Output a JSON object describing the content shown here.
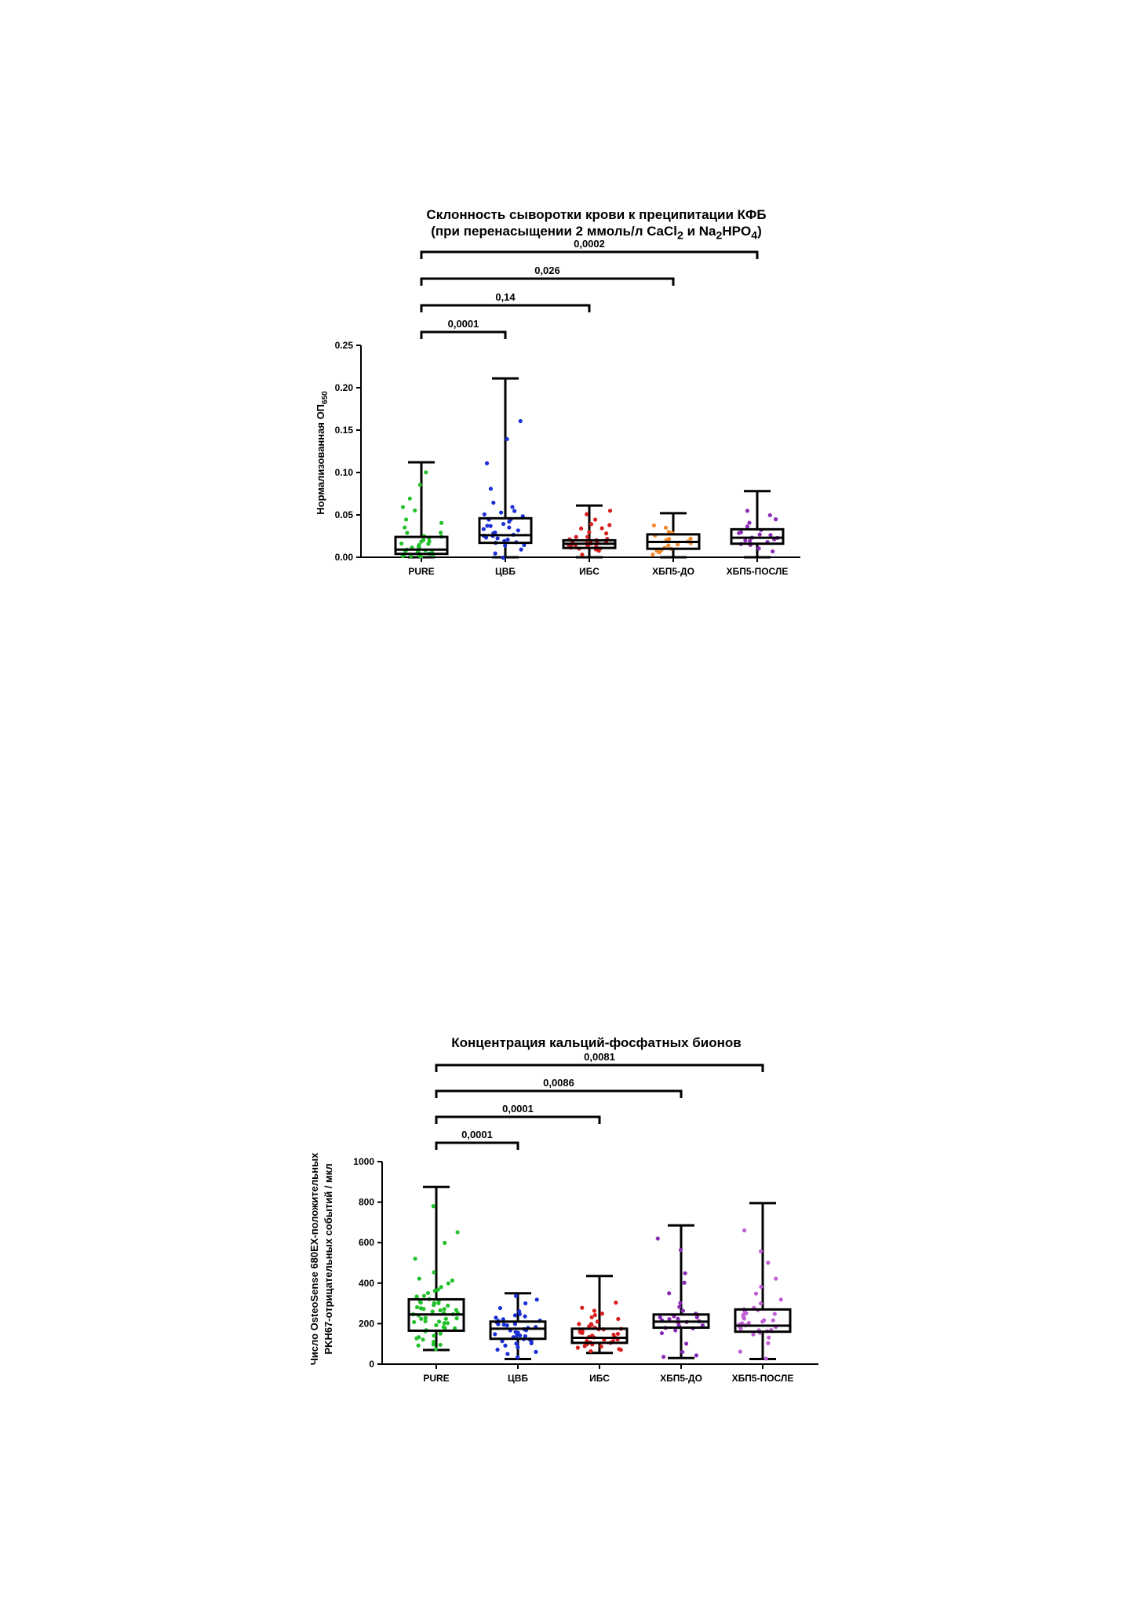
{
  "chart_data": [
    {
      "type": "box",
      "title_line1": "Склонность сыворотки крови к преципитации КФБ",
      "title_line2_parts": [
        "(при перенасыщении 2 ммоль/л CaCl",
        "2",
        " и Na",
        "2",
        "HPO",
        "4",
        ")"
      ],
      "ylabel": "Нормализованная ОП",
      "ylabel_sub": "650",
      "ylim": [
        0,
        0.25
      ],
      "yticks": [
        "0.00",
        "0.05",
        "0.10",
        "0.15",
        "0.20",
        "0.25"
      ],
      "ytick_values": [
        0,
        0.05,
        0.1,
        0.15,
        0.2,
        0.25
      ],
      "categories": [
        "PURE",
        "ЦВБ",
        "ИБС",
        "ХБП5-ДО",
        "ХБП5-ПОСЛЕ"
      ],
      "colors": [
        "#22c02a",
        "#1a2fd6",
        "#d91e1e",
        "#f08a2c",
        "#8a2bb5"
      ],
      "boxes": [
        {
          "min": 0.0,
          "q1": 0.004,
          "median": 0.009,
          "q3": 0.024,
          "max": 0.112
        },
        {
          "min": 0.0,
          "q1": 0.017,
          "median": 0.026,
          "q3": 0.046,
          "max": 0.211
        },
        {
          "min": 0.0,
          "q1": 0.011,
          "median": 0.016,
          "q3": 0.02,
          "max": 0.061
        },
        {
          "min": 0.0,
          "q1": 0.01,
          "median": 0.018,
          "q3": 0.027,
          "max": 0.052
        },
        {
          "min": 0.0,
          "q1": 0.016,
          "median": 0.023,
          "q3": 0.033,
          "max": 0.078
        }
      ],
      "points": [
        [
          0.001,
          0.003,
          0.005,
          0.002,
          0.008,
          0.012,
          0.015,
          0.018,
          0.022,
          0.025,
          0.028,
          0.03,
          0.035,
          0.04,
          0.006,
          0.004,
          0.01,
          0.014,
          0.02,
          0.045,
          0.055,
          0.06,
          0.07,
          0.085,
          0.1,
          0.003,
          0.007,
          0.011,
          0.016,
          0.019,
          0.024,
          0.009,
          0.013,
          0.002,
          0.001,
          0.005
        ],
        [
          0.005,
          0.01,
          0.015,
          0.018,
          0.02,
          0.022,
          0.025,
          0.027,
          0.03,
          0.033,
          0.035,
          0.038,
          0.04,
          0.042,
          0.045,
          0.048,
          0.05,
          0.055,
          0.06,
          0.065,
          0.08,
          0.11,
          0.14,
          0.16,
          0.013,
          0.017,
          0.023,
          0.028,
          0.031,
          0.036,
          0.044,
          0.052,
          0.019,
          0.026,
          0.0
        ],
        [
          0.004,
          0.008,
          0.01,
          0.012,
          0.013,
          0.014,
          0.015,
          0.016,
          0.017,
          0.018,
          0.019,
          0.02,
          0.022,
          0.025,
          0.028,
          0.03,
          0.035,
          0.04,
          0.045,
          0.05,
          0.055,
          0.009,
          0.011,
          0.016,
          0.018,
          0.021,
          0.014,
          0.012,
          0.017,
          0.024,
          0.033,
          0.038
        ],
        [
          0.003,
          0.006,
          0.009,
          0.012,
          0.015,
          0.018,
          0.02,
          0.022,
          0.025,
          0.028,
          0.03,
          0.034,
          0.038,
          0.01,
          0.016,
          0.021,
          0.013,
          0.008
        ],
        [
          0.006,
          0.01,
          0.014,
          0.018,
          0.02,
          0.022,
          0.024,
          0.026,
          0.028,
          0.03,
          0.033,
          0.036,
          0.04,
          0.045,
          0.05,
          0.055,
          0.016,
          0.023,
          0.019,
          0.027
        ]
      ],
      "comparisons": [
        {
          "from": 0,
          "to": 1,
          "p": "0,0001"
        },
        {
          "from": 0,
          "to": 2,
          "p": "0,14"
        },
        {
          "from": 0,
          "to": 3,
          "p": "0,026"
        },
        {
          "from": 0,
          "to": 4,
          "p": "0,0002"
        }
      ]
    },
    {
      "type": "box",
      "title_line1": "Концентрация кальций-фосфатных бионов",
      "ylabel_line1": "Число OsteoSense 680EX-положительных",
      "ylabel_line2": "PKH67-отрицательных событий / мкл",
      "ylim": [
        0,
        1000
      ],
      "yticks": [
        "0",
        "200",
        "400",
        "600",
        "800",
        "1000"
      ],
      "ytick_values": [
        0,
        200,
        400,
        600,
        800,
        1000
      ],
      "categories": [
        "PURE",
        "ЦВБ",
        "ИБС",
        "ХБП5-ДО",
        "ХБП5-ПОСЛЕ"
      ],
      "colors": [
        "#22c02a",
        "#1a2fd6",
        "#d91e1e",
        "#8a2bb5",
        "#c05fd6"
      ],
      "boxes": [
        {
          "min": 70,
          "q1": 165,
          "median": 245,
          "q3": 320,
          "max": 875
        },
        {
          "min": 25,
          "q1": 125,
          "median": 175,
          "q3": 210,
          "max": 350
        },
        {
          "min": 55,
          "q1": 105,
          "median": 130,
          "q3": 175,
          "max": 435
        },
        {
          "min": 30,
          "q1": 180,
          "median": 210,
          "q3": 245,
          "max": 685
        },
        {
          "min": 25,
          "q1": 160,
          "median": 190,
          "q3": 270,
          "max": 795
        }
      ],
      "points": [
        [
          75,
          90,
          110,
          130,
          150,
          170,
          180,
          190,
          200,
          210,
          220,
          230,
          240,
          250,
          260,
          270,
          280,
          290,
          300,
          310,
          320,
          330,
          340,
          360,
          380,
          400,
          420,
          450,
          520,
          600,
          650,
          780,
          100,
          140,
          160,
          200,
          230,
          250,
          270,
          290,
          310,
          350,
          120,
          180,
          215,
          245,
          265,
          285,
          305,
          95,
          135,
          175,
          205,
          225,
          255,
          275,
          300,
          330,
          370,
          410
        ],
        [
          30,
          50,
          70,
          90,
          100,
          110,
          120,
          130,
          140,
          150,
          160,
          170,
          180,
          190,
          200,
          210,
          220,
          230,
          240,
          250,
          260,
          280,
          300,
          320,
          340,
          60,
          85,
          115,
          145,
          175,
          195,
          215,
          235,
          125,
          155,
          185,
          205,
          105,
          135,
          165,
          195
        ],
        [
          60,
          70,
          80,
          90,
          100,
          110,
          120,
          130,
          140,
          150,
          160,
          170,
          180,
          190,
          200,
          210,
          220,
          240,
          260,
          280,
          300,
          85,
          95,
          105,
          115,
          125,
          135,
          145,
          155,
          165,
          175,
          185,
          195,
          75,
          115,
          135,
          155,
          175,
          230,
          250
        ],
        [
          35,
          45,
          60,
          100,
          150,
          170,
          180,
          190,
          200,
          210,
          220,
          230,
          240,
          250,
          260,
          280,
          300,
          350,
          400,
          450,
          560,
          620,
          185,
          205,
          215,
          225,
          195,
          175,
          235,
          245
        ],
        [
          30,
          60,
          100,
          130,
          150,
          160,
          170,
          180,
          190,
          200,
          210,
          220,
          230,
          240,
          250,
          260,
          270,
          280,
          300,
          320,
          350,
          380,
          420,
          500,
          560,
          660,
          165,
          185,
          205,
          225,
          245,
          265,
          195,
          215,
          175,
          155
        ]
      ],
      "comparisons": [
        {
          "from": 0,
          "to": 1,
          "p": "0,0001"
        },
        {
          "from": 0,
          "to": 2,
          "p": "0,0001"
        },
        {
          "from": 0,
          "to": 3,
          "p": "0,0086"
        },
        {
          "from": 0,
          "to": 4,
          "p": "0,0081"
        }
      ]
    }
  ]
}
